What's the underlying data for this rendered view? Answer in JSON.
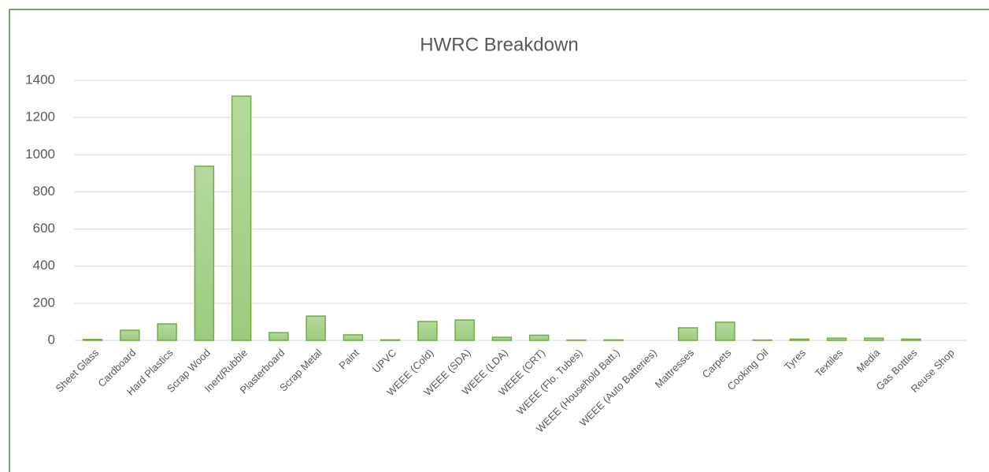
{
  "chart_data": {
    "type": "bar",
    "title": "HWRC Breakdown",
    "categories": [
      "Sheet Glass",
      "Cardboard",
      "Hard Plastics",
      "Scrap Wood",
      "Inert/Rubble",
      "Plasterboard",
      "Scrap Metal",
      "Paint",
      "UPVC",
      "WEEE (Cold)",
      "WEEE (SDA)",
      "WEEE (LDA)",
      "WEEE (CRT)",
      "WEEE (Flo. Tubes)",
      "WEEE (Household Batt.)",
      "WEEE (Auto Batteries)",
      "Mattresses",
      "Carpets",
      "Cooking Oil",
      "Tyres",
      "Textiles",
      "Media",
      "Gas Bottles",
      "Reuse Shop"
    ],
    "values": [
      5,
      55,
      89,
      938,
      1315,
      42,
      131,
      30,
      3,
      102,
      110,
      17,
      28,
      2,
      3,
      0,
      68,
      98,
      2,
      7,
      12,
      12,
      7,
      0
    ],
    "color": "#a9d18e",
    "edge_color": "#70ad47",
    "ylim": [
      0,
      1400
    ],
    "yticks": [
      0,
      200,
      400,
      600,
      800,
      1000,
      1200,
      1400
    ],
    "grid": true
  }
}
